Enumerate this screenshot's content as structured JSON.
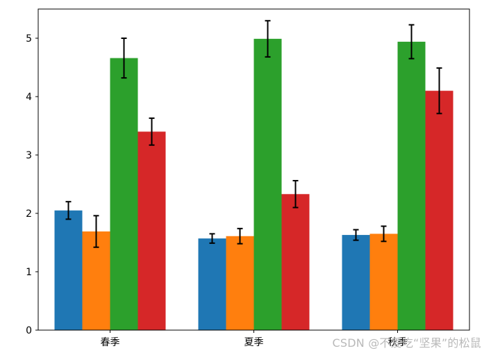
{
  "chart_data": {
    "type": "bar",
    "categories": [
      "春季",
      "夏季",
      "秋季"
    ],
    "series": [
      {
        "color": "#1f77b4",
        "values": [
          2.05,
          1.57,
          1.63
        ],
        "errors": [
          0.15,
          0.08,
          0.09
        ]
      },
      {
        "color": "#ff7f0e",
        "values": [
          1.69,
          1.61,
          1.65
        ],
        "errors": [
          0.27,
          0.13,
          0.13
        ]
      },
      {
        "color": "#2ca02c",
        "values": [
          4.66,
          4.99,
          4.94
        ],
        "errors": [
          0.34,
          0.31,
          0.29
        ]
      },
      {
        "color": "#d62728",
        "values": [
          3.4,
          2.33,
          4.1
        ],
        "errors": [
          0.23,
          0.23,
          0.39
        ]
      }
    ],
    "yticks": [
      0,
      1,
      2,
      3,
      4,
      5
    ],
    "ylim": [
      0,
      5.5
    ],
    "grid": false,
    "error_bars": true
  },
  "watermark": "CSDN @不爱吃“坚果”的松鼠"
}
